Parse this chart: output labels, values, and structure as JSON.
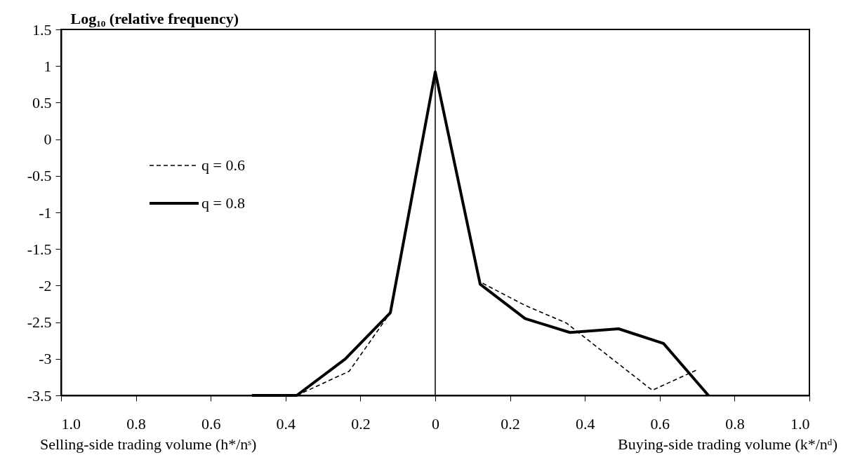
{
  "chart_data": {
    "type": "line",
    "ylabel": "Log₁₀ (relative frequency)",
    "annotations": [
      "Selling-side trading volume (h*/nˢ)",
      "Buying-side trading volume (k*/nᵈ)"
    ],
    "xlim": [
      -1,
      1
    ],
    "xticks": [
      {
        "value": -1,
        "label": "1.0"
      },
      {
        "value": -0.8,
        "label": "0.8"
      },
      {
        "value": -0.6,
        "label": "0.6"
      },
      {
        "value": -0.4,
        "label": "0.4"
      },
      {
        "value": -0.2,
        "label": "0.2"
      },
      0,
      0.2,
      0.4,
      0.6,
      0.8,
      {
        "value": 1,
        "label": "1.0"
      }
    ],
    "ylim": [
      -3.5,
      1.5
    ],
    "yticks": [
      1.5,
      1,
      0.5,
      0,
      -0.5,
      -1,
      -1.5,
      -2,
      -2.5,
      -3,
      -3.5
    ],
    "grid": false,
    "legend": "left",
    "marker": "none",
    "ref_lines": [
      {
        "axis": "x",
        "value": 0,
        "color": "#000000"
      }
    ],
    "series": [
      {
        "name": "q = 0.6",
        "color": "#000000",
        "line_style": "dashed",
        "x": [
          -0.37,
          -0.23,
          -0.12,
          0,
          0.12,
          0.24,
          0.35,
          0.58,
          0.7
        ],
        "values": [
          -3.5,
          -3.17,
          -2.37,
          0.9,
          -1.95,
          -2.27,
          -2.51,
          -3.43,
          -3.15
        ]
      },
      {
        "name": "q = 0.8",
        "color": "#000000",
        "line_style": "solid",
        "x": [
          -0.49,
          -0.37,
          -0.24,
          -0.12,
          0,
          0.12,
          0.24,
          0.36,
          0.49,
          0.61,
          0.73
        ],
        "values": [
          -3.5,
          -3.5,
          -3.0,
          -2.37,
          0.92,
          -1.98,
          -2.45,
          -2.64,
          -2.59,
          -2.79,
          -3.5
        ]
      }
    ]
  }
}
